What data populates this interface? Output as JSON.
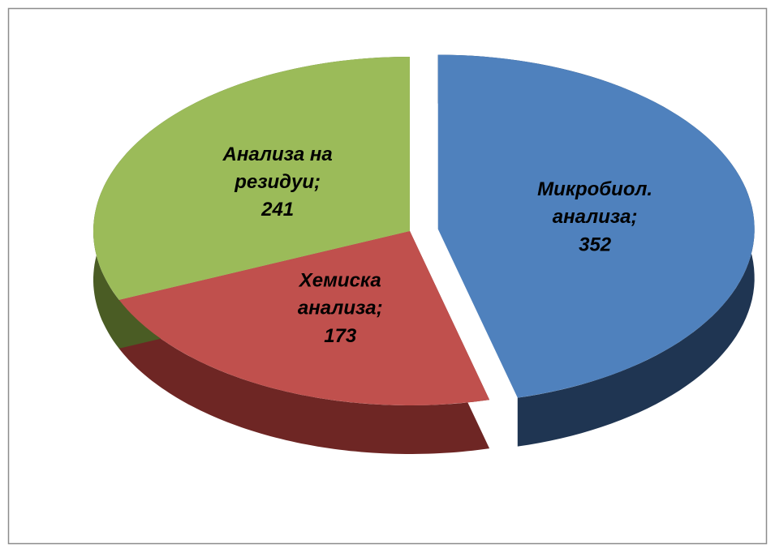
{
  "chart_data": {
    "type": "pie3d",
    "categories": [
      "Микробиол. анализа",
      "Хемиска анализа",
      "Анализа на резидуи"
    ],
    "values": [
      352,
      173,
      241
    ],
    "label_separator": ";",
    "colors": [
      "#4f81bd",
      "#c0504d",
      "#9bbb59"
    ],
    "side_colors": [
      "#1f3552",
      "#6e2624",
      "#4a5c24"
    ],
    "exploded": [
      true,
      false,
      false
    ]
  }
}
